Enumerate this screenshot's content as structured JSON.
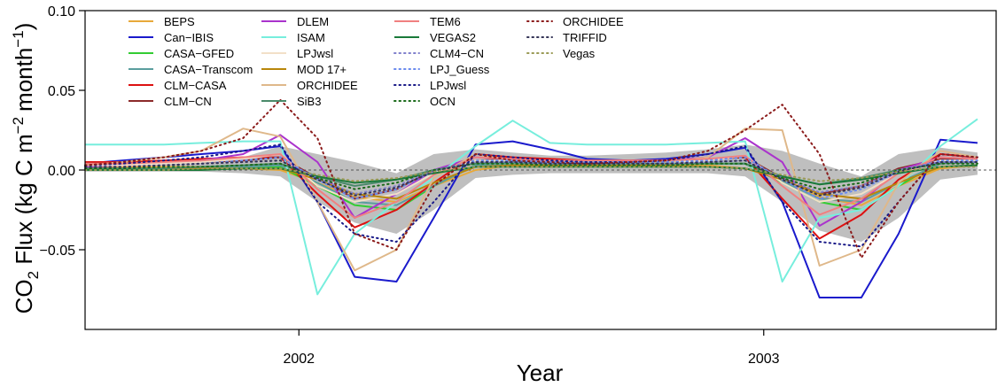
{
  "chart_data": {
    "type": "line",
    "xlabel": "Year",
    "ylabel": "CO2 Flux (kg C m-2 month-1)",
    "ylabel_parts": {
      "pre": "CO",
      "sub": "2",
      "mid": " Flux (kg C m",
      "sup1": "−2",
      "mid2": "month",
      "sup2": "−1",
      "post": ")"
    },
    "xlim": [
      2001.54,
      2003.5
    ],
    "ylim": [
      -0.1,
      0.1
    ],
    "x_ticks": [
      2002,
      2003
    ],
    "x_tick_labels": [
      "2002",
      "2003"
    ],
    "y_ticks": [
      -0.05,
      0.0,
      0.05,
      0.1
    ],
    "y_tick_labels": [
      "−0.05",
      "0.00",
      "0.05",
      "0.10"
    ],
    "x_months": [
      2001.54,
      2001.62,
      2001.71,
      2001.79,
      2001.88,
      2001.96,
      2002.04,
      2002.12,
      2002.21,
      2002.29,
      2002.38,
      2002.46,
      2002.54,
      2002.62,
      2002.71,
      2002.79,
      2002.88,
      2002.96,
      2003.04,
      2003.12,
      2003.21,
      2003.29,
      2003.38,
      2003.46
    ],
    "ensemble_band": {
      "lower": [
        -0.001,
        -0.001,
        -0.001,
        -0.001,
        -0.002,
        -0.004,
        -0.02,
        -0.033,
        -0.04,
        -0.025,
        -0.005,
        -0.003,
        -0.002,
        -0.002,
        -0.002,
        -0.002,
        -0.002,
        -0.004,
        -0.02,
        -0.038,
        -0.045,
        -0.03,
        -0.006,
        -0.003
      ],
      "upper": [
        0.004,
        0.004,
        0.005,
        0.006,
        0.008,
        0.015,
        0.01,
        0.005,
        -0.002,
        0.01,
        0.013,
        0.011,
        0.009,
        0.009,
        0.01,
        0.011,
        0.013,
        0.016,
        0.012,
        0.004,
        -0.004,
        0.01,
        0.014,
        0.011
      ]
    },
    "series": [
      {
        "name": "BEPS",
        "color": "#e8a93a",
        "dash": "solid",
        "values": [
          0.002,
          0.002,
          0.002,
          0.002,
          0.001,
          0.0,
          -0.008,
          -0.017,
          -0.02,
          -0.01,
          0.0,
          0.003,
          0.004,
          0.004,
          0.004,
          0.004,
          0.003,
          0.001,
          -0.005,
          -0.017,
          -0.022,
          -0.01,
          0.001,
          0.003
        ]
      },
      {
        "name": "Can−IBIS",
        "color": "#1a1acc",
        "dash": "solid",
        "values": [
          0.004,
          0.006,
          0.008,
          0.01,
          0.012,
          0.015,
          -0.02,
          -0.067,
          -0.07,
          -0.03,
          0.016,
          0.018,
          0.013,
          0.007,
          0.006,
          0.007,
          0.01,
          0.014,
          -0.02,
          -0.08,
          -0.08,
          -0.04,
          0.019,
          0.017
        ]
      },
      {
        "name": "CASA−GFED",
        "color": "#33cc33",
        "dash": "solid",
        "values": [
          0.001,
          0.001,
          0.001,
          0.001,
          0.001,
          0.002,
          -0.01,
          -0.022,
          -0.025,
          -0.01,
          0.003,
          0.005,
          0.005,
          0.004,
          0.004,
          0.004,
          0.004,
          0.004,
          -0.008,
          -0.02,
          -0.025,
          -0.01,
          0.005,
          0.006
        ]
      },
      {
        "name": "CASA−Transcom",
        "color": "#5a9e9e",
        "dash": "solid",
        "values": [
          0.001,
          0.001,
          0.001,
          0.001,
          0.002,
          0.003,
          -0.008,
          -0.02,
          -0.022,
          -0.01,
          0.003,
          0.004,
          0.004,
          0.004,
          0.004,
          0.004,
          0.004,
          0.004,
          -0.007,
          -0.018,
          -0.02,
          -0.008,
          0.004,
          0.005
        ]
      },
      {
        "name": "CLM−CASA",
        "color": "#dd1111",
        "dash": "solid",
        "values": [
          0.005,
          0.005,
          0.006,
          0.007,
          0.008,
          0.008,
          -0.015,
          -0.036,
          -0.025,
          -0.008,
          0.01,
          0.008,
          0.007,
          0.006,
          0.006,
          0.006,
          0.007,
          0.008,
          -0.018,
          -0.043,
          -0.028,
          -0.006,
          0.01,
          0.008
        ]
      },
      {
        "name": "CLM−CN",
        "color": "#8b2a2a",
        "dash": "solid",
        "values": [
          0.004,
          0.004,
          0.004,
          0.005,
          0.006,
          0.008,
          -0.005,
          -0.018,
          -0.012,
          0.0,
          0.006,
          0.007,
          0.006,
          0.005,
          0.005,
          0.006,
          0.007,
          0.008,
          -0.005,
          -0.015,
          -0.01,
          0.001,
          0.007,
          0.007
        ]
      },
      {
        "name": "DLEM",
        "color": "#aa33cc",
        "dash": "solid",
        "values": [
          0.002,
          0.003,
          0.004,
          0.006,
          0.01,
          0.022,
          0.005,
          -0.03,
          -0.015,
          0.0,
          0.008,
          0.007,
          0.006,
          0.005,
          0.005,
          0.006,
          0.008,
          0.02,
          0.005,
          -0.035,
          -0.02,
          0.0,
          0.008,
          0.007
        ]
      },
      {
        "name": "ISAM",
        "color": "#77eedd",
        "dash": "solid",
        "values": [
          0.016,
          0.016,
          0.016,
          0.017,
          0.018,
          0.018,
          -0.078,
          -0.04,
          -0.02,
          -0.005,
          0.015,
          0.031,
          0.017,
          0.016,
          0.016,
          0.016,
          0.017,
          0.018,
          -0.07,
          -0.03,
          -0.025,
          -0.01,
          0.015,
          0.032
        ]
      },
      {
        "name": "LPJwsl",
        "color": "#f2e0c8",
        "dash": "solid",
        "values": [
          0.003,
          0.003,
          0.004,
          0.005,
          0.007,
          0.01,
          -0.01,
          -0.02,
          -0.015,
          -0.002,
          0.006,
          0.006,
          0.005,
          0.005,
          0.005,
          0.005,
          0.006,
          0.009,
          -0.008,
          -0.02,
          -0.015,
          -0.002,
          0.006,
          0.006
        ]
      },
      {
        "name": "MOD 17+",
        "color": "#b8860b",
        "dash": "solid",
        "values": [
          0.001,
          0.001,
          0.001,
          0.001,
          0.001,
          0.001,
          -0.006,
          -0.015,
          -0.018,
          -0.008,
          0.002,
          0.003,
          0.003,
          0.003,
          0.003,
          0.003,
          0.002,
          0.001,
          -0.006,
          -0.015,
          -0.018,
          -0.008,
          0.002,
          0.003
        ]
      },
      {
        "name": "ORCHIDEE",
        "color": "#dfb88a",
        "dash": "solid",
        "values": [
          0.003,
          0.005,
          0.008,
          0.012,
          0.026,
          0.021,
          -0.02,
          -0.063,
          -0.05,
          -0.005,
          0.01,
          0.006,
          0.005,
          0.004,
          0.004,
          0.005,
          0.008,
          0.026,
          0.025,
          -0.06,
          -0.05,
          -0.008,
          0.012,
          0.008
        ]
      },
      {
        "name": "SiB3",
        "color": "#4a8a6a",
        "dash": "solid",
        "values": [
          0.001,
          0.001,
          0.001,
          0.002,
          0.003,
          0.004,
          -0.004,
          -0.01,
          -0.006,
          0.0,
          0.004,
          0.005,
          0.004,
          0.004,
          0.004,
          0.004,
          0.004,
          0.004,
          -0.004,
          -0.009,
          -0.005,
          0.0,
          0.004,
          0.005
        ]
      },
      {
        "name": "TEM6",
        "color": "#f08080",
        "dash": "solid",
        "values": [
          0.004,
          0.004,
          0.005,
          0.006,
          0.008,
          0.01,
          -0.012,
          -0.03,
          -0.02,
          -0.003,
          0.008,
          0.007,
          0.006,
          0.006,
          0.006,
          0.006,
          0.007,
          0.009,
          -0.01,
          -0.028,
          -0.018,
          -0.002,
          0.008,
          0.007
        ]
      },
      {
        "name": "VEGAS2",
        "color": "#1a7a3a",
        "dash": "solid",
        "values": [
          0.0,
          0.0,
          0.0,
          0.0,
          0.001,
          0.001,
          -0.004,
          -0.008,
          -0.006,
          -0.002,
          0.002,
          0.002,
          0.002,
          0.002,
          0.002,
          0.002,
          0.002,
          0.001,
          -0.004,
          -0.009,
          -0.006,
          -0.002,
          0.002,
          0.003
        ]
      },
      {
        "name": "CLM4−CN",
        "color": "#8080cc",
        "dash": "dotted",
        "values": [
          0.002,
          0.002,
          0.003,
          0.004,
          0.005,
          0.006,
          -0.005,
          -0.015,
          -0.01,
          0.0,
          0.005,
          0.005,
          0.004,
          0.004,
          0.004,
          0.004,
          0.005,
          0.006,
          -0.005,
          -0.014,
          -0.01,
          0.0,
          0.005,
          0.005
        ]
      },
      {
        "name": "LPJ_Guess",
        "color": "#6a8aee",
        "dash": "dotted",
        "values": [
          0.002,
          0.002,
          0.003,
          0.004,
          0.006,
          0.008,
          -0.006,
          -0.018,
          -0.012,
          -0.001,
          0.006,
          0.006,
          0.005,
          0.005,
          0.005,
          0.005,
          0.006,
          0.008,
          -0.006,
          -0.018,
          -0.012,
          -0.001,
          0.006,
          0.006
        ]
      },
      {
        "name": "LPJwsl",
        "color": "#1a1a88",
        "dash": "dotted",
        "values": [
          0.003,
          0.004,
          0.006,
          0.008,
          0.012,
          0.016,
          -0.02,
          -0.04,
          -0.045,
          -0.02,
          0.01,
          0.008,
          0.006,
          0.005,
          0.005,
          0.006,
          0.01,
          0.015,
          -0.02,
          -0.045,
          -0.048,
          -0.02,
          0.01,
          0.008
        ]
      },
      {
        "name": "OCN",
        "color": "#1a6a1a",
        "dash": "dotted",
        "values": [
          0.001,
          0.001,
          0.002,
          0.002,
          0.003,
          0.004,
          -0.005,
          -0.012,
          -0.008,
          0.0,
          0.004,
          0.004,
          0.003,
          0.003,
          0.003,
          0.003,
          0.004,
          0.004,
          -0.005,
          -0.012,
          -0.008,
          0.0,
          0.004,
          0.004
        ]
      },
      {
        "name": "ORCHIDEE",
        "color": "#8b1a1a",
        "dash": "dotted",
        "values": [
          0.003,
          0.005,
          0.008,
          0.012,
          0.02,
          0.044,
          0.02,
          -0.04,
          -0.05,
          -0.01,
          0.01,
          0.006,
          0.005,
          0.004,
          0.005,
          0.006,
          0.012,
          0.025,
          0.041,
          0.01,
          -0.055,
          -0.02,
          0.01,
          0.008
        ]
      },
      {
        "name": "TRIFFID",
        "color": "#333355",
        "dash": "dotted",
        "values": [
          0.002,
          0.002,
          0.003,
          0.004,
          0.005,
          0.006,
          -0.006,
          -0.016,
          -0.011,
          -0.001,
          0.005,
          0.005,
          0.004,
          0.004,
          0.004,
          0.004,
          0.005,
          0.006,
          -0.006,
          -0.016,
          -0.011,
          -0.001,
          0.005,
          0.005
        ]
      },
      {
        "name": "Vegas",
        "color": "#9a9a55",
        "dash": "dotted",
        "values": [
          0.0,
          0.0,
          0.0,
          0.001,
          0.001,
          0.001,
          -0.003,
          -0.007,
          -0.005,
          -0.001,
          0.002,
          0.002,
          0.002,
          0.002,
          0.002,
          0.002,
          0.002,
          0.001,
          -0.003,
          -0.007,
          -0.005,
          -0.001,
          0.002,
          0.002
        ]
      }
    ],
    "legend": {
      "placement": "top-left-inside",
      "columns": 4
    }
  }
}
